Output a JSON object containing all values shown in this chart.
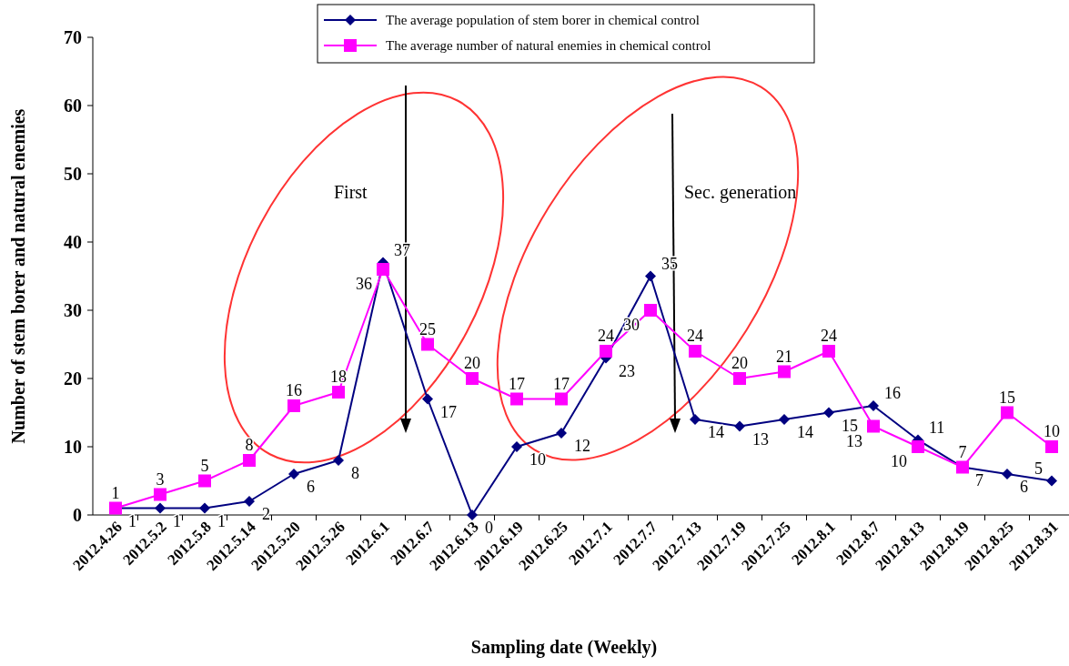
{
  "chart_data": {
    "type": "line",
    "xlabel": "Sampling date (Weekly)",
    "ylabel": "Number of stem borer and natural enemies",
    "categories": [
      "2012.4.26",
      "2012.5.2",
      "2012.5.8",
      "2012.5.14",
      "2012.5.20",
      "2012.5.26",
      "2012.6.1",
      "2012.6.7",
      "2012.6.13",
      "2012.6.19",
      "2012.6.25",
      "2012.7.1",
      "2012.7.7",
      "2012.7.13",
      "2012.7.19",
      "2012.7.25",
      "2012.8.1",
      "2012.8.7",
      "2012.8.13",
      "2012.8.19",
      "2012.8.25",
      "2012.8.31"
    ],
    "series": [
      {
        "name": "The average population of stem borer in chemical control",
        "color": "#000080",
        "marker": "diamond",
        "values": [
          1,
          1,
          1,
          2,
          6,
          8,
          37,
          17,
          0,
          10,
          12,
          23,
          35,
          14,
          13,
          14,
          15,
          16,
          11,
          7,
          6,
          5
        ]
      },
      {
        "name": "The average number of natural enemies in chemical control",
        "color": "#ff00ff",
        "marker": "square",
        "values": [
          1,
          3,
          5,
          8,
          16,
          18,
          36,
          25,
          20,
          17,
          17,
          24,
          30,
          24,
          20,
          21,
          24,
          13,
          10,
          7,
          15,
          10
        ]
      }
    ],
    "ylim": [
      0,
      70
    ],
    "yticks": [
      0,
      10,
      20,
      30,
      40,
      50,
      60,
      70
    ],
    "grid": false,
    "legend": "top",
    "data_labels": true,
    "annotations": [
      "First",
      "Sec. generation"
    ]
  }
}
